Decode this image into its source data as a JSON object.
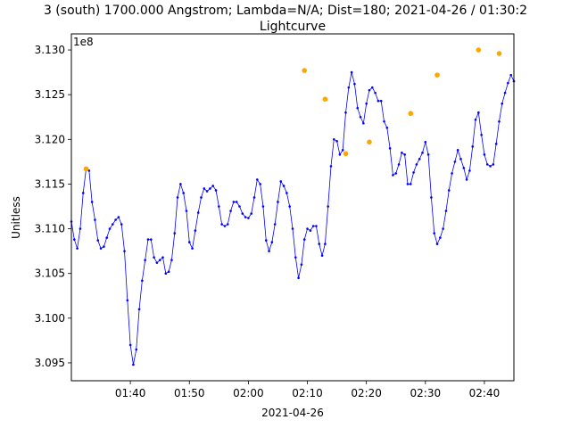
{
  "chart_data": {
    "type": "line",
    "title": "3 (south) 1700.000 Angstrom; Lambda=N/A; Dist=180; 2021-04-26 / 01:30:2",
    "subtitle": "Lightcurve",
    "xlabel": "2021-04-26",
    "ylabel": "Unitless",
    "y_offset_label": "1e8",
    "xlim": [
      "01:30",
      "02:45"
    ],
    "ylim": [
      3.093,
      3.1318
    ],
    "y_scale_factor": 100000000,
    "grid": false,
    "x_ticks": [
      "01:40",
      "01:50",
      "02:00",
      "02:10",
      "02:20",
      "02:30",
      "02:40"
    ],
    "y_ticks": [
      "3.095",
      "3.100",
      "3.105",
      "3.110",
      "3.115",
      "3.120",
      "3.125",
      "3.130"
    ],
    "colors": {
      "line": "#0000ff",
      "peaks": "#ffa500"
    },
    "series": [
      {
        "values": [
          [
            "01:30",
            3.1108
          ],
          [
            "01:30:30",
            3.1088
          ],
          [
            "01:31",
            3.1078
          ],
          [
            "01:31:30",
            3.11
          ],
          [
            "01:32",
            3.114
          ],
          [
            "01:32:30",
            3.1167
          ],
          [
            "01:33",
            3.1165
          ],
          [
            "01:33:30",
            3.113
          ],
          [
            "01:34",
            3.111
          ],
          [
            "01:34:30",
            3.1087
          ],
          [
            "01:35",
            3.1078
          ],
          [
            "01:35:30",
            3.108
          ],
          [
            "01:36",
            3.109
          ],
          [
            "01:36:30",
            3.11
          ],
          [
            "01:37",
            3.1105
          ],
          [
            "01:37:30",
            3.111
          ],
          [
            "01:38",
            3.1113
          ],
          [
            "01:38:30",
            3.1105
          ],
          [
            "01:39",
            3.1075
          ],
          [
            "01:39:30",
            3.102
          ],
          [
            "01:40",
            3.097
          ],
          [
            "01:40:30",
            3.0948
          ],
          [
            "01:41",
            3.0965
          ],
          [
            "01:41:30",
            3.101
          ],
          [
            "01:42",
            3.1042
          ],
          [
            "01:42:30",
            3.1065
          ],
          [
            "01:43",
            3.1088
          ],
          [
            "01:43:30",
            3.1088
          ],
          [
            "01:44",
            3.1068
          ],
          [
            "01:44:30",
            3.1062
          ],
          [
            "01:45",
            3.1065
          ],
          [
            "01:45:30",
            3.1068
          ],
          [
            "01:46",
            3.105
          ],
          [
            "01:46:30",
            3.1052
          ],
          [
            "01:47",
            3.1065
          ],
          [
            "01:47:30",
            3.1095
          ],
          [
            "01:48",
            3.1135
          ],
          [
            "01:48:30",
            3.115
          ],
          [
            "01:49",
            3.114
          ],
          [
            "01:49:30",
            3.112
          ],
          [
            "01:50",
            3.1085
          ],
          [
            "01:50:30",
            3.1078
          ],
          [
            "01:51",
            3.1098
          ],
          [
            "01:51:30",
            3.1118
          ],
          [
            "01:52",
            3.1135
          ],
          [
            "01:52:30",
            3.1145
          ],
          [
            "01:53",
            3.1142
          ],
          [
            "01:53:30",
            3.1145
          ],
          [
            "01:54",
            3.1148
          ],
          [
            "01:54:30",
            3.1143
          ],
          [
            "01:55",
            3.1125
          ],
          [
            "01:55:30",
            3.1105
          ],
          [
            "01:56",
            3.1103
          ],
          [
            "01:56:30",
            3.1105
          ],
          [
            "01:57",
            3.112
          ],
          [
            "01:57:30",
            3.113
          ],
          [
            "01:58",
            3.113
          ],
          [
            "01:58:30",
            3.1125
          ],
          [
            "01:59",
            3.1117
          ],
          [
            "01:59:30",
            3.1113
          ],
          [
            "02:00",
            3.1112
          ],
          [
            "02:00:30",
            3.1117
          ],
          [
            "02:01",
            3.1135
          ],
          [
            "02:01:30",
            3.1155
          ],
          [
            "02:02",
            3.115
          ],
          [
            "02:02:30",
            3.1125
          ],
          [
            "02:03",
            3.1087
          ],
          [
            "02:03:30",
            3.1075
          ],
          [
            "02:04",
            3.1085
          ],
          [
            "02:04:30",
            3.1105
          ],
          [
            "02:05",
            3.113
          ],
          [
            "02:05:30",
            3.1153
          ],
          [
            "02:06",
            3.1148
          ],
          [
            "02:06:30",
            3.114
          ],
          [
            "02:07",
            3.1125
          ],
          [
            "02:07:30",
            3.11
          ],
          [
            "02:08",
            3.1068
          ],
          [
            "02:08:30",
            3.1045
          ],
          [
            "02:09",
            3.106
          ],
          [
            "02:09:30",
            3.1088
          ],
          [
            "02:10",
            3.11
          ],
          [
            "02:10:30",
            3.1098
          ],
          [
            "02:11",
            3.1103
          ],
          [
            "02:11:30",
            3.1103
          ],
          [
            "02:12",
            3.1083
          ],
          [
            "02:12:30",
            3.107
          ],
          [
            "02:13",
            3.1083
          ],
          [
            "02:13:30",
            3.1125
          ],
          [
            "02:14",
            3.117
          ],
          [
            "02:14:30",
            3.12
          ],
          [
            "02:15",
            3.1198
          ],
          [
            "02:15:30",
            3.1183
          ],
          [
            "02:16",
            3.1188
          ],
          [
            "02:16:30",
            3.123
          ],
          [
            "02:17",
            3.1258
          ],
          [
            "02:17:30",
            3.1275
          ],
          [
            "02:18",
            3.1262
          ],
          [
            "02:18:30",
            3.1235
          ],
          [
            "02:19",
            3.1225
          ],
          [
            "02:19:30",
            3.1218
          ],
          [
            "02:20",
            3.124
          ],
          [
            "02:20:30",
            3.1255
          ],
          [
            "02:21",
            3.1258
          ],
          [
            "02:21:30",
            3.1252
          ],
          [
            "02:22",
            3.1243
          ],
          [
            "02:22:30",
            3.1243
          ],
          [
            "02:23",
            3.122
          ],
          [
            "02:23:30",
            3.1213
          ],
          [
            "02:24",
            3.119
          ],
          [
            "02:24:30",
            3.116
          ],
          [
            "02:25",
            3.1162
          ],
          [
            "02:25:30",
            3.1172
          ],
          [
            "02:26",
            3.1185
          ],
          [
            "02:26:30",
            3.1183
          ],
          [
            "02:27",
            3.115
          ],
          [
            "02:27:30",
            3.115
          ],
          [
            "02:28",
            3.1163
          ],
          [
            "02:28:30",
            3.1172
          ],
          [
            "02:29",
            3.1178
          ],
          [
            "02:29:30",
            3.1185
          ],
          [
            "02:30",
            3.1197
          ],
          [
            "02:30:30",
            3.1183
          ],
          [
            "02:31",
            3.1135
          ],
          [
            "02:31:30",
            3.1095
          ],
          [
            "02:32",
            3.1083
          ],
          [
            "02:32:30",
            3.109
          ],
          [
            "02:33",
            3.11
          ],
          [
            "02:33:30",
            3.112
          ],
          [
            "02:34",
            3.1143
          ],
          [
            "02:34:30",
            3.1162
          ],
          [
            "02:35",
            3.1175
          ],
          [
            "02:35:30",
            3.1188
          ],
          [
            "02:36",
            3.1178
          ],
          [
            "02:36:30",
            3.1168
          ],
          [
            "02:37",
            3.1155
          ],
          [
            "02:37:30",
            3.1165
          ],
          [
            "02:38",
            3.1192
          ],
          [
            "02:38:30",
            3.1222
          ],
          [
            "02:39",
            3.123
          ],
          [
            "02:39:30",
            3.1205
          ],
          [
            "02:40",
            3.1183
          ],
          [
            "02:40:30",
            3.1172
          ],
          [
            "02:41",
            3.117
          ],
          [
            "02:41:30",
            3.1172
          ],
          [
            "02:42",
            3.1195
          ],
          [
            "02:42:30",
            3.122
          ],
          [
            "02:43",
            3.124
          ],
          [
            "02:43:30",
            3.1252
          ],
          [
            "02:44",
            3.1263
          ],
          [
            "02:44:30",
            3.1272
          ],
          [
            "02:45",
            3.1265
          ]
        ]
      }
    ],
    "peaks": [
      [
        "01:32:30",
        3.1167
      ],
      [
        "02:09:30",
        3.1277
      ],
      [
        "02:13:00",
        3.1245
      ],
      [
        "02:16:30",
        3.1184
      ],
      [
        "02:20:30",
        3.1197
      ],
      [
        "02:27:30",
        3.1229
      ],
      [
        "02:32:00",
        3.1272
      ],
      [
        "02:39:00",
        3.13
      ],
      [
        "02:42:30",
        3.1296
      ]
    ]
  }
}
